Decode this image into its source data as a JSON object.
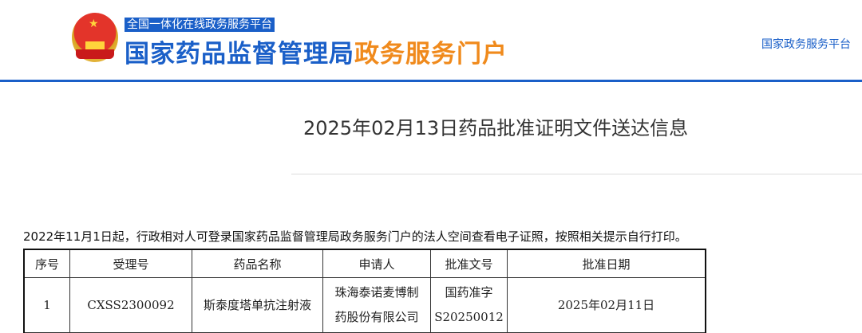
{
  "header": {
    "subtitle": "全国一体化在线政务服务平台",
    "title_main": "国家药品监督管理局",
    "title_accent": "政务服务门户",
    "top_link": "国家政务服务平台",
    "brand_color": "#1a5fc8",
    "accent_color": "#f08a1c"
  },
  "page_title": "2025年02月13日药品批准证明文件送达信息",
  "notice": "2022年11月1日起，行政相对人可登录国家药品监督管理局政务服务门户的法人空间查看电子证照，按照相关提示自行打印。",
  "table": {
    "headers": [
      "序号",
      "受理号",
      "药品名称",
      "申请人",
      "批准文号",
      "批准日期"
    ],
    "rows": [
      {
        "seq": "1",
        "accept_no": "CXSS2300092",
        "drug": "斯泰度塔单抗注射液",
        "applicant_l1": "珠海泰诺麦博制",
        "applicant_l2": "药股份有限公司",
        "approval_l1": "国药准字",
        "approval_l2": "S20250012",
        "date": "2025年02月11日"
      }
    ]
  }
}
